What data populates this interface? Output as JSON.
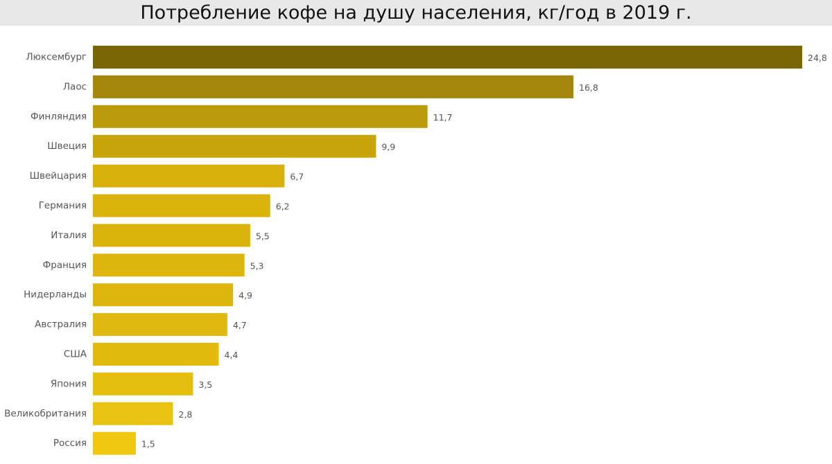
{
  "chart_data": {
    "type": "bar",
    "orientation": "horizontal",
    "title": "Потребление кофе на душу населения, кг/год в 2019 г.",
    "xlabel": "",
    "ylabel": "",
    "xlim": [
      0,
      24.8
    ],
    "grid": false,
    "legend": "none",
    "categories": [
      "Люксембург",
      "Лаос",
      "Финляндия",
      "Швеция",
      "Швейцария",
      "Германия",
      "Италия",
      "Франция",
      "Нидерланды",
      "Австралия",
      "США",
      "Япония",
      "Великобритания",
      "Россия"
    ],
    "values": [
      24.8,
      16.8,
      11.7,
      9.9,
      6.7,
      6.2,
      5.5,
      5.3,
      4.9,
      4.7,
      4.4,
      3.5,
      2.8,
      1.5
    ],
    "value_labels": [
      "24,8",
      "16,8",
      "11,7",
      "9,9",
      "6,7",
      "6,2",
      "5,5",
      "5,3",
      "4,9",
      "4,7",
      "4,4",
      "3,5",
      "2,8",
      "1,5"
    ],
    "colors": [
      "#7b6605",
      "#a4860c",
      "#bb9a0c",
      "#c9a50c",
      "#d9b10c",
      "#dbb30d",
      "#dbb30d",
      "#ddb50e",
      "#ddb50e",
      "#e0b80f",
      "#e2ba10",
      "#e6be10",
      "#eac312",
      "#f0c814"
    ]
  }
}
